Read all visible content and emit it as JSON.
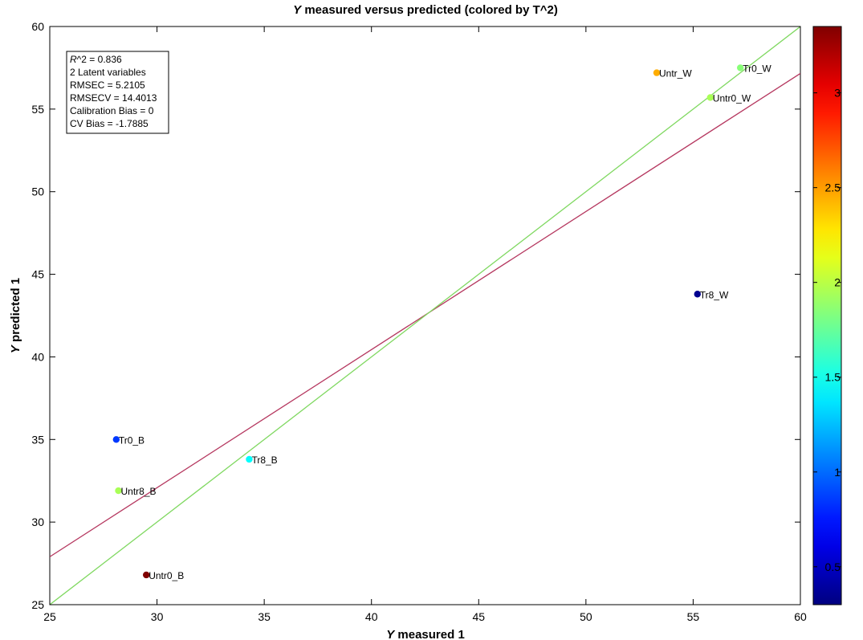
{
  "chart_data": {
    "type": "scatter",
    "title_prefix": "Y",
    "title_rest": " measured versus predicted (colored by T^2)",
    "xlabel_prefix": "Y",
    "xlabel_rest": " measured 1",
    "ylabel_prefix": "Y",
    "ylabel_rest": " predicted 1",
    "xlim": [
      25,
      60
    ],
    "ylim": [
      25,
      60
    ],
    "xticks": [
      "25",
      "30",
      "35",
      "40",
      "45",
      "50",
      "55",
      "60"
    ],
    "yticks": [
      "25",
      "30",
      "35",
      "40",
      "45",
      "50",
      "55",
      "60"
    ],
    "points": [
      {
        "label": "Untr_W",
        "x": 53.3,
        "y": 57.2,
        "t2": 2.45
      },
      {
        "label": "Tr0_W",
        "x": 57.2,
        "y": 57.5,
        "t2": 1.85
      },
      {
        "label": "Untr0_W",
        "x": 55.8,
        "y": 55.7,
        "t2": 1.95
      },
      {
        "label": "Tr8_W",
        "x": 55.2,
        "y": 43.8,
        "t2": 0.35
      },
      {
        "label": "Tr0_B",
        "x": 28.1,
        "y": 35.0,
        "t2": 0.85
      },
      {
        "label": "Tr8_B",
        "x": 34.3,
        "y": 33.8,
        "t2": 1.45
      },
      {
        "label": "Untr8_B",
        "x": 28.2,
        "y": 31.9,
        "t2": 1.95
      },
      {
        "label": "Untr0_B",
        "x": 29.5,
        "y": 26.8,
        "t2": 3.35
      }
    ],
    "fit_line": {
      "color": "#b5375f",
      "slope": 0.836,
      "intercept": 7.0
    },
    "identity_line": {
      "color": "#7fd860"
    },
    "colorbar": {
      "min": 0.3,
      "max": 3.35,
      "ticks": [
        "0.5",
        "1",
        "1.5",
        "2",
        "2.5",
        "3"
      ],
      "colormap": "jet"
    },
    "stats": [
      {
        "prefix": "R",
        "rest": "^2 = 0.836"
      },
      {
        "prefix": "",
        "rest": "2 Latent variables"
      },
      {
        "prefix": "",
        "rest": "RMSEC = 5.2105"
      },
      {
        "prefix": "",
        "rest": "RMSECV = 14.4013"
      },
      {
        "prefix": "",
        "rest": "Calibration Bias = 0"
      },
      {
        "prefix": "",
        "rest": "CV Bias = -1.7885"
      }
    ]
  }
}
